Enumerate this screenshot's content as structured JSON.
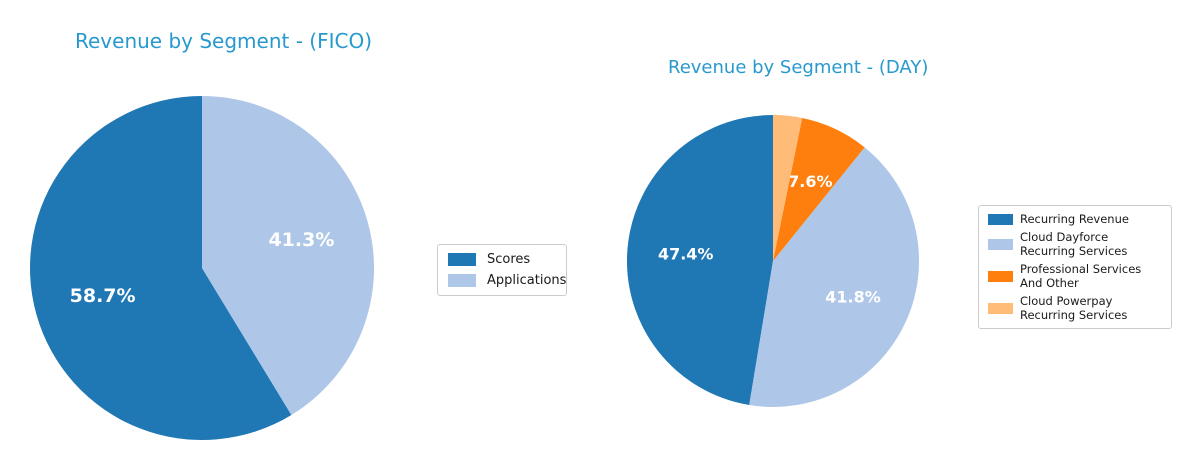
{
  "palette": {
    "title_color": "#2899ce",
    "pct_label_color": "#ffffff",
    "legend_text_color": "#1a1a1a",
    "legend_border_color": "#cccccc",
    "background": "#ffffff"
  },
  "chart_data": [
    {
      "type": "pie",
      "title": "Revenue by Segment - (FICO)",
      "categories": [
        "Scores",
        "Applications"
      ],
      "values": [
        58.7,
        41.3
      ],
      "pct_labels": [
        "58.7%",
        "41.3%"
      ],
      "colors": [
        "#1f77b4",
        "#aec7e8"
      ],
      "start_angle_deg": 90,
      "direction": "counterclockwise",
      "legend_position": "center-right",
      "legend_labels": [
        "Scores",
        "Applications"
      ]
    },
    {
      "type": "pie",
      "title": "Revenue by Segment - (DAY)",
      "categories": [
        "Recurring Revenue",
        "Cloud Dayforce Recurring Services",
        "Professional Services And Other",
        "Cloud Powerpay Recurring Services"
      ],
      "values": [
        47.4,
        41.8,
        7.6,
        3.2
      ],
      "pct_labels": [
        "47.4%",
        "41.8%",
        "7.6%",
        ""
      ],
      "colors": [
        "#1f77b4",
        "#aec7e8",
        "#ff7f0e",
        "#ffbb78"
      ],
      "start_angle_deg": 90,
      "direction": "counterclockwise",
      "legend_position": "center-right",
      "legend_labels": [
        "Recurring Revenue",
        "Cloud Dayforce Recurring Services",
        "Professional Services And Other",
        "Cloud Powerpay Recurring Services"
      ]
    }
  ]
}
